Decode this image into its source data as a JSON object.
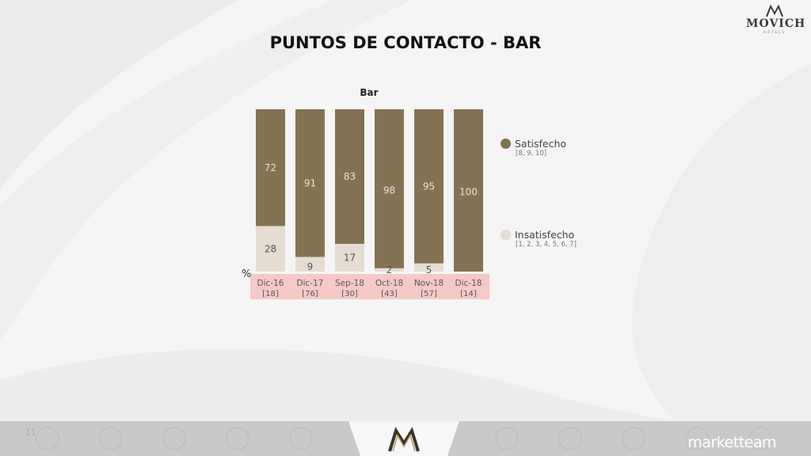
{
  "header": {
    "title": "PUNTOS DE CONTACTO - BAR"
  },
  "logo": {
    "brand": "MOVICH",
    "sub": "HOTELS"
  },
  "footer": {
    "left_text": "11",
    "brand": "marketteam"
  },
  "colors": {
    "satisfied": "#857253",
    "unsatisfied": "#e5ddd1",
    "xaxis_band": "#f6c9c7"
  },
  "chart_data": {
    "type": "bar",
    "stacked": true,
    "title": "Bar",
    "ylabel": "%",
    "ylim": [
      0,
      100
    ],
    "categories": [
      "Dic-16",
      "Dic-17",
      "Sep-18",
      "Oct-18",
      "Nov-18",
      "Dic-18"
    ],
    "bases": [
      "[18]",
      "[76]",
      "[30]",
      "[43]",
      "[57]",
      "[14]"
    ],
    "series": [
      {
        "name": "Insatisfecho",
        "scale": "[1, 2, 3, 4, 5, 6, 7]",
        "values": [
          28,
          9,
          17,
          2,
          5,
          0
        ]
      },
      {
        "name": "Satisfecho",
        "scale": "[8, 9, 10]",
        "values": [
          72,
          91,
          83,
          98,
          95,
          100
        ]
      }
    ],
    "data_labels": {
      "Insatisfecho": [
        "28",
        "9",
        "17",
        "2",
        "5",
        ""
      ],
      "Satisfecho": [
        "72",
        "91",
        "83",
        "98",
        "95",
        "100"
      ]
    },
    "legend_position": "right"
  }
}
